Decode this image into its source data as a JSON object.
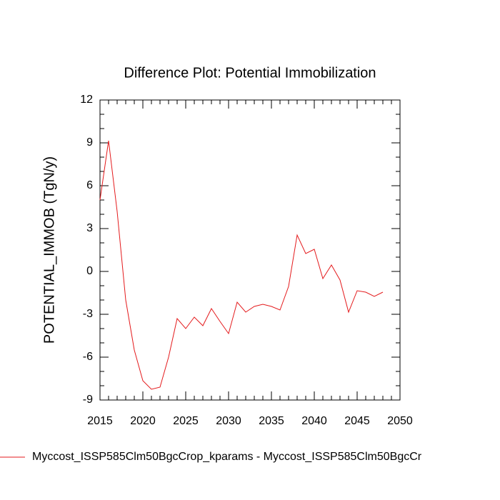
{
  "chart_data": {
    "type": "line",
    "title": "Difference Plot: Potential Immobilization",
    "y_label": "POTENTIAL_IMMOB  (TgN/y)",
    "x": [
      2015,
      2016,
      2017,
      2018,
      2019,
      2020,
      2021,
      2022,
      2023,
      2024,
      2025,
      2026,
      2027,
      2028,
      2029,
      2030,
      2031,
      2032,
      2033,
      2034,
      2035,
      2036,
      2037,
      2038,
      2039,
      2040,
      2041,
      2042,
      2043,
      2044,
      2045,
      2046,
      2047,
      2048
    ],
    "series": [
      {
        "name": "Myccost_ISSP585Clm50BgcCrop_kparams - Myccost_ISSP585Clm50BgcCr",
        "color": "#e41a1c",
        "values": [
          5.0,
          9.15,
          4.2,
          -2.0,
          -5.5,
          -7.65,
          -8.25,
          -8.1,
          -6.0,
          -3.3,
          -4.0,
          -3.2,
          -3.8,
          -2.6,
          -3.5,
          -4.35,
          -2.15,
          -2.85,
          -2.45,
          -2.3,
          -2.45,
          -2.7,
          -1.05,
          2.55,
          1.25,
          1.55,
          -0.5,
          0.45,
          -0.6,
          -2.85,
          -1.35,
          -1.45,
          -1.75,
          -1.45
        ]
      }
    ],
    "xlim": [
      2015,
      2050
    ],
    "xticks": [
      2015,
      2020,
      2025,
      2030,
      2035,
      2040,
      2045,
      2050
    ],
    "ylim": [
      -9,
      12
    ],
    "yticks": [
      -9,
      -6,
      -3,
      0,
      3,
      6,
      9,
      12
    ]
  }
}
